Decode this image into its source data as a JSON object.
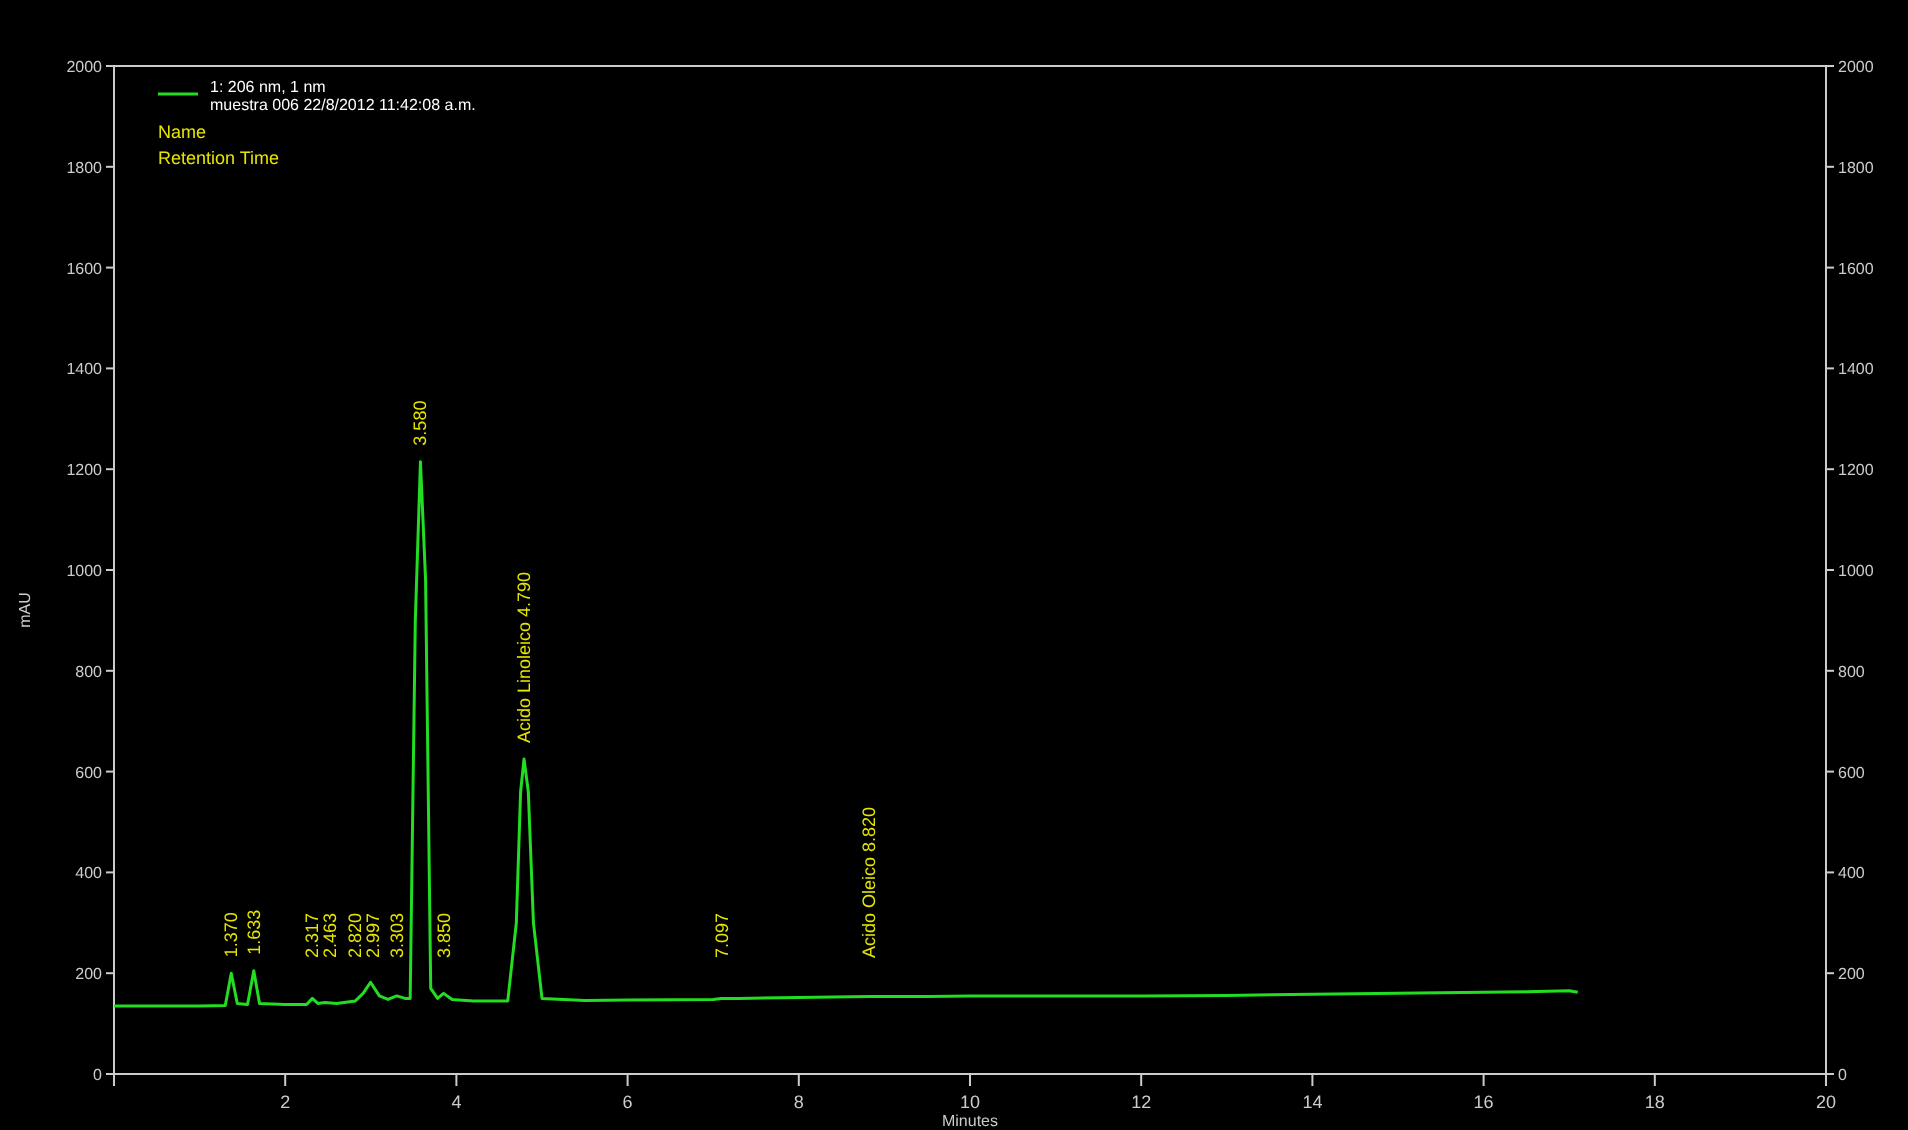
{
  "chart_data": {
    "type": "line",
    "xlabel": "Minutes",
    "ylabel": "mAU",
    "series": [
      {
        "name": "1: 206 nm, 1 nm",
        "color": "#22dd22",
        "x": [
          0,
          1.0,
          1.3,
          1.37,
          1.44,
          1.56,
          1.633,
          1.7,
          2.0,
          2.25,
          2.317,
          2.38,
          2.463,
          2.6,
          2.82,
          2.91,
          2.997,
          3.1,
          3.2,
          3.303,
          3.4,
          3.46,
          3.52,
          3.58,
          3.64,
          3.7,
          3.78,
          3.85,
          3.95,
          4.2,
          4.6,
          4.7,
          4.75,
          4.79,
          4.84,
          4.9,
          5.0,
          5.5,
          6.0,
          7.0,
          7.097,
          7.3,
          8.0,
          8.82,
          9.5,
          10,
          12,
          13,
          14,
          15,
          16,
          16.5,
          17.0,
          17.1
        ],
        "values": [
          135,
          135,
          136,
          200,
          140,
          138,
          205,
          140,
          138,
          138,
          150,
          140,
          142,
          140,
          145,
          160,
          182,
          155,
          148,
          155,
          150,
          150,
          900,
          1215,
          980,
          170,
          150,
          160,
          148,
          145,
          145,
          300,
          560,
          625,
          560,
          300,
          150,
          146,
          147,
          148,
          150,
          150,
          152,
          154,
          154,
          155,
          155,
          156,
          158,
          160,
          162,
          163,
          165,
          162
        ]
      }
    ],
    "xlim": [
      0,
      20
    ],
    "xticks": [
      {
        "value": 0,
        "label": null
      },
      2,
      4,
      6,
      8,
      10,
      12,
      14,
      16,
      18,
      20
    ],
    "ylim": [
      0,
      2000
    ],
    "yticks": [
      0,
      200,
      400,
      600,
      800,
      1000,
      1200,
      1400,
      1600,
      1800,
      2000
    ],
    "y2lim": [
      0,
      2000
    ],
    "y2ticks": [
      0,
      200,
      400,
      600,
      800,
      1000,
      1200,
      1400,
      1600,
      1800,
      2000
    ],
    "legend": "top left",
    "marker": "none",
    "line_style": "solid",
    "grid": false,
    "annotations": [
      "muestra 006 22/8/2012 11:42:08 a.m.",
      "Name",
      "Retention Time",
      {
        "text": "1.370",
        "x": 1.37,
        "y": 200
      },
      {
        "text": "1.633",
        "x": 1.633,
        "y": 205
      },
      {
        "text": "2.317",
        "x": 2.317,
        "y": 150
      },
      {
        "text": "2.463",
        "x": 2.463,
        "y": 142
      },
      {
        "text": "2.820",
        "x": 2.82,
        "y": 145
      },
      {
        "text": "2.997",
        "x": 2.997,
        "y": 182
      },
      {
        "text": "3.303",
        "x": 3.303,
        "y": 155
      },
      {
        "text": "3.580",
        "x": 3.58,
        "y": 1215
      },
      {
        "text": "3.850",
        "x": 3.85,
        "y": 160
      },
      {
        "text": "Acido Linoleico 4.790",
        "x": 4.79,
        "y": 625
      },
      {
        "text": "7.097",
        "x": 7.097,
        "y": 150
      },
      {
        "text": "Acido Oleico 8.820",
        "x": 8.82,
        "y": 154
      }
    ]
  }
}
